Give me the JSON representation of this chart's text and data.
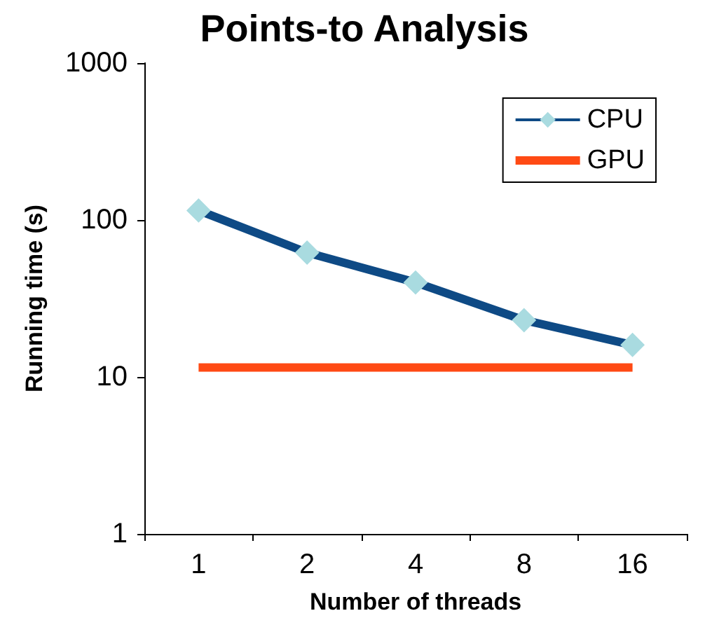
{
  "chart_data": {
    "type": "line",
    "title": "Points-to Analysis",
    "xlabel": "Number of threads",
    "ylabel": "Running time (s)",
    "categories": [
      "1",
      "2",
      "4",
      "8",
      "16"
    ],
    "series": [
      {
        "name": "CPU",
        "color": "#0e4a85",
        "marker": "diamond",
        "values": [
          115,
          62,
          40,
          23,
          16
        ]
      },
      {
        "name": "GPU",
        "color": "#ff4a14",
        "marker": "none",
        "values": [
          11.5,
          11.5,
          11.5,
          11.5,
          11.5
        ]
      }
    ],
    "log": true,
    "ylim": [
      1,
      1000
    ],
    "yticks": [
      1,
      10,
      100,
      1000
    ],
    "grid": false,
    "legend": "top right"
  }
}
